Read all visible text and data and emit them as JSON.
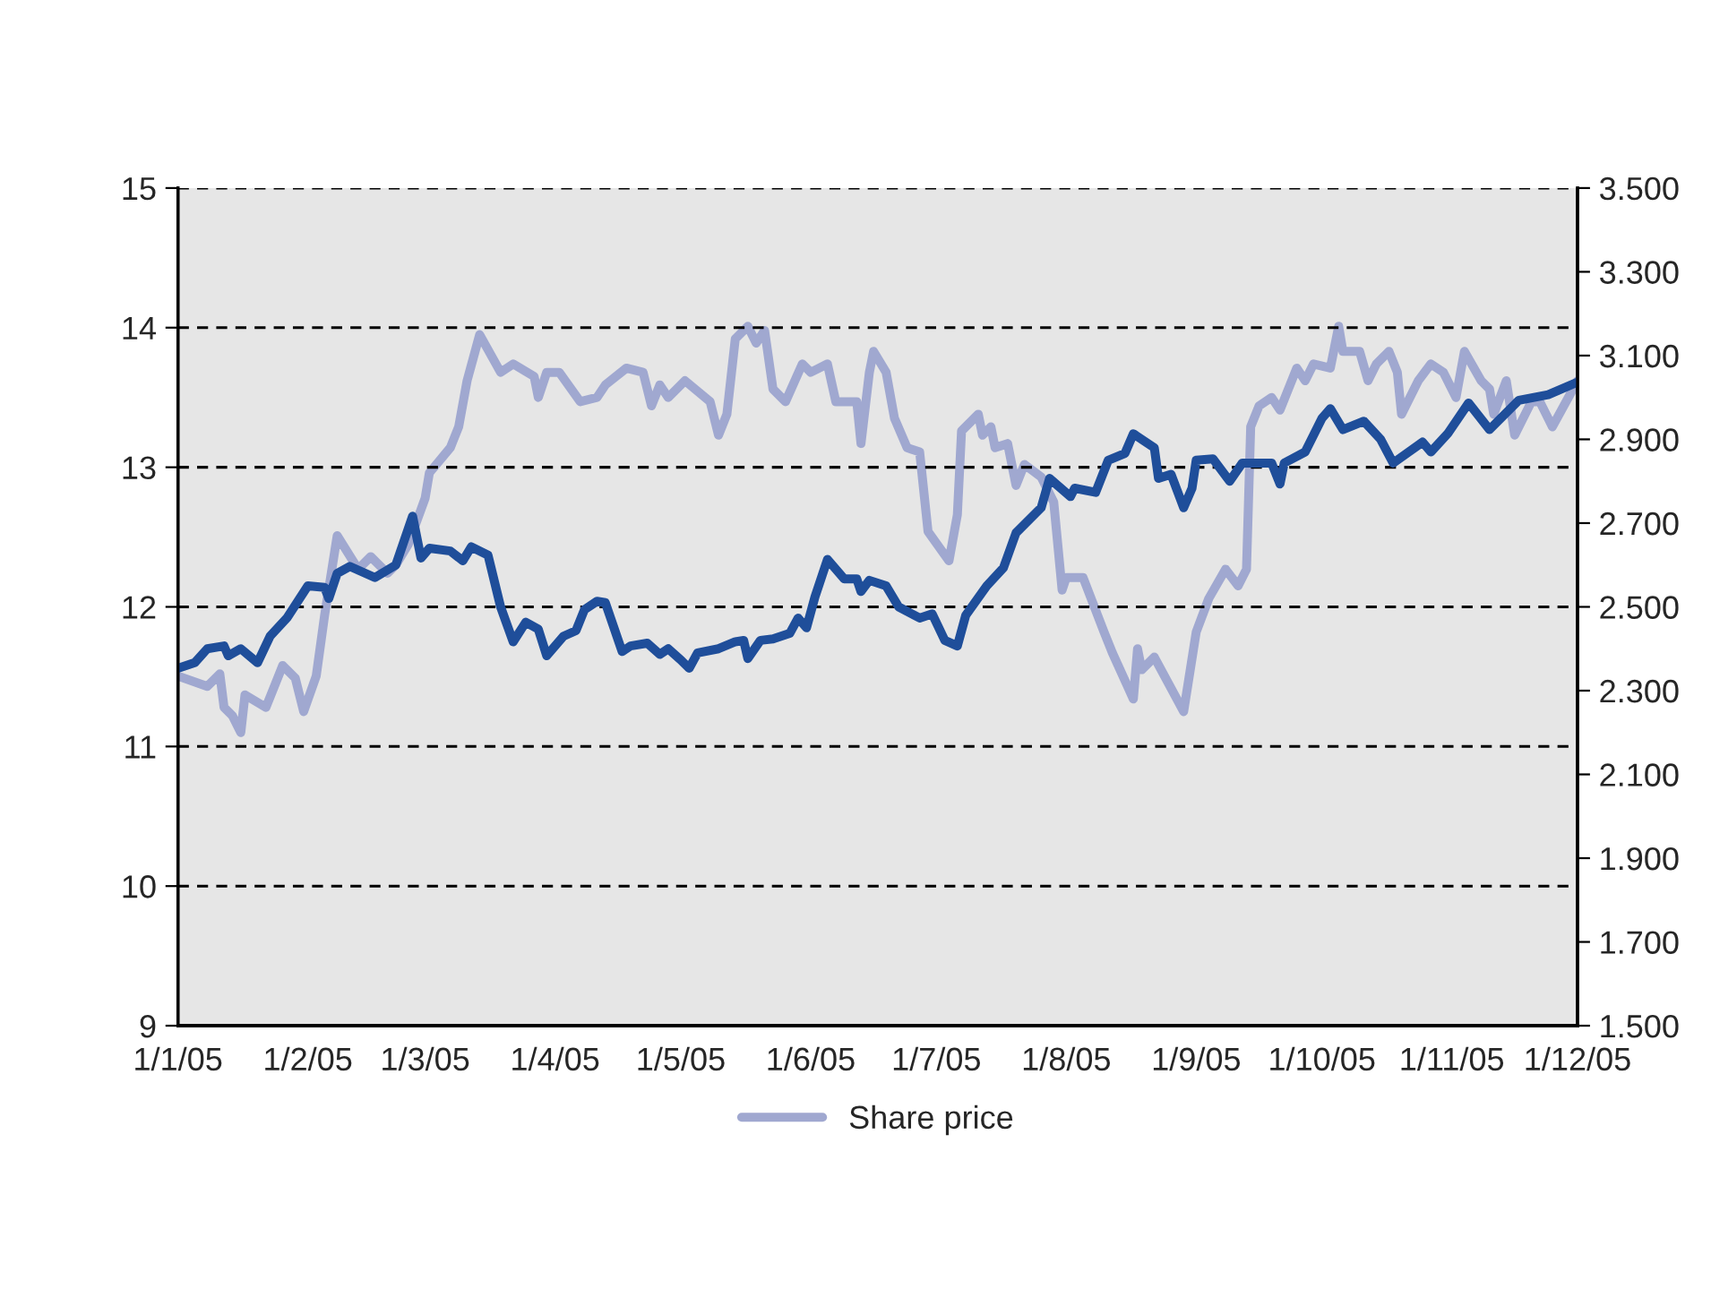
{
  "chart_data": {
    "type": "line",
    "xlim": [
      "2005-01-01",
      "2005-12-01"
    ],
    "xticks": [
      {
        "value": "2005-01-01",
        "label": "1/1/05"
      },
      {
        "value": "2005-02-01",
        "label": "1/2/05"
      },
      {
        "value": "2005-03-01",
        "label": "1/3/05"
      },
      {
        "value": "2005-04-01",
        "label": "1/4/05"
      },
      {
        "value": "2005-05-01",
        "label": "1/5/05"
      },
      {
        "value": "2005-06-01",
        "label": "1/6/05"
      },
      {
        "value": "2005-07-01",
        "label": "1/7/05"
      },
      {
        "value": "2005-08-01",
        "label": "1/8/05"
      },
      {
        "value": "2005-09-01",
        "label": "1/9/05"
      },
      {
        "value": "2005-10-01",
        "label": "1/10/05"
      },
      {
        "value": "2005-11-01",
        "label": "1/11/05"
      },
      {
        "value": "2005-12-01",
        "label": "1/12/05"
      }
    ],
    "ylim": [
      9,
      15
    ],
    "yticks": [
      9,
      10,
      11,
      12,
      13,
      14,
      15
    ],
    "y2lim": [
      1.5,
      3.5
    ],
    "y2ticks": [
      {
        "value": 1.5,
        "label": "1.500"
      },
      {
        "value": 1.7,
        "label": "1.700"
      },
      {
        "value": 1.9,
        "label": "1.900"
      },
      {
        "value": 2.1,
        "label": "2.100"
      },
      {
        "value": 2.3,
        "label": "2.300"
      },
      {
        "value": 2.5,
        "label": "2.500"
      },
      {
        "value": 2.7,
        "label": "2.700"
      },
      {
        "value": 2.9,
        "label": "2.900"
      },
      {
        "value": 3.1,
        "label": "3.100"
      },
      {
        "value": 3.3,
        "label": "3.300"
      },
      {
        "value": 3.5,
        "label": "3.500"
      }
    ],
    "grid": "y",
    "legend": "bottom",
    "series": [
      {
        "color": "#1f4e9a",
        "x": [
          "2005-01-01",
          "2005-01-05",
          "2005-01-08",
          "2005-01-12",
          "2005-01-13",
          "2005-01-16",
          "2005-01-20",
          "2005-01-23",
          "2005-01-27",
          "2005-02-01",
          "2005-02-05",
          "2005-02-06",
          "2005-02-08",
          "2005-02-11",
          "2005-02-17",
          "2005-02-22",
          "2005-02-26",
          "2005-02-28",
          "2005-03-02",
          "2005-03-07",
          "2005-03-10",
          "2005-03-12",
          "2005-03-16",
          "2005-03-19",
          "2005-03-22",
          "2005-03-25",
          "2005-03-28",
          "2005-03-30",
          "2005-04-03",
          "2005-04-06",
          "2005-04-08",
          "2005-04-11",
          "2005-04-13",
          "2005-04-17",
          "2005-04-19",
          "2005-04-23",
          "2005-04-26",
          "2005-04-28",
          "2005-05-01",
          "2005-05-03",
          "2005-05-05",
          "2005-05-10",
          "2005-05-14",
          "2005-05-16",
          "2005-05-17",
          "2005-05-20",
          "2005-05-23",
          "2005-05-27",
          "2005-05-29",
          "2005-05-31",
          "2005-06-02",
          "2005-06-05",
          "2005-06-09",
          "2005-06-12",
          "2005-06-13",
          "2005-06-15",
          "2005-06-19",
          "2005-06-22",
          "2005-06-27",
          "2005-06-30",
          "2005-07-03",
          "2005-07-06",
          "2005-07-08",
          "2005-07-13",
          "2005-07-17",
          "2005-07-20",
          "2005-07-26",
          "2005-07-28",
          "2005-08-02",
          "2005-08-03",
          "2005-08-08",
          "2005-08-11",
          "2005-08-15",
          "2005-08-17",
          "2005-08-22",
          "2005-08-23",
          "2005-08-26",
          "2005-08-29",
          "2005-08-31",
          "2005-09-01",
          "2005-09-05",
          "2005-09-09",
          "2005-09-12",
          "2005-09-19",
          "2005-09-21",
          "2005-09-22",
          "2005-09-27",
          "2005-10-01",
          "2005-10-03",
          "2005-10-06",
          "2005-10-11",
          "2005-10-15",
          "2005-10-18",
          "2005-10-25",
          "2005-10-27",
          "2005-10-31",
          "2005-11-05",
          "2005-11-10",
          "2005-11-17",
          "2005-11-24",
          "2005-12-01"
        ],
        "values": [
          11.56,
          11.6,
          11.7,
          11.72,
          11.65,
          11.7,
          11.6,
          11.79,
          11.92,
          12.15,
          12.14,
          12.06,
          12.24,
          12.29,
          12.21,
          12.3,
          12.65,
          12.35,
          12.42,
          12.4,
          12.33,
          12.43,
          12.37,
          12.0,
          11.75,
          11.89,
          11.84,
          11.65,
          11.79,
          11.83,
          11.98,
          12.04,
          12.03,
          11.68,
          11.72,
          11.74,
          11.66,
          11.7,
          11.62,
          11.56,
          11.67,
          11.7,
          11.75,
          11.76,
          11.63,
          11.76,
          11.77,
          11.81,
          11.92,
          11.85,
          12.07,
          12.34,
          12.2,
          12.2,
          12.11,
          12.19,
          12.15,
          12.0,
          11.92,
          11.95,
          11.76,
          11.72,
          11.94,
          12.15,
          12.28,
          12.53,
          12.71,
          12.92,
          12.79,
          12.85,
          12.82,
          13.05,
          13.1,
          13.24,
          13.14,
          12.92,
          12.95,
          12.71,
          12.85,
          13.05,
          13.06,
          12.9,
          13.03,
          13.03,
          12.88,
          13.03,
          13.11,
          13.35,
          13.42,
          13.27,
          13.33,
          13.2,
          13.03,
          13.18,
          13.11,
          13.24,
          13.46,
          13.27,
          13.48,
          13.52,
          13.61
        ]
      },
      {
        "name": "Share price",
        "color": "#a0a8d0",
        "axis": "y2",
        "x": [
          "2005-01-01",
          "2005-01-08",
          "2005-01-11",
          "2005-01-12",
          "2005-01-14",
          "2005-01-16",
          "2005-01-17",
          "2005-01-22",
          "2005-01-26",
          "2005-01-29",
          "2005-01-31",
          "2005-02-03",
          "2005-02-05",
          "2005-02-08",
          "2005-02-13",
          "2005-02-16",
          "2005-02-20",
          "2005-02-22",
          "2005-02-25",
          "2005-03-01",
          "2005-03-02",
          "2005-03-07",
          "2005-03-09",
          "2005-03-11",
          "2005-03-14",
          "2005-03-19",
          "2005-03-22",
          "2005-03-27",
          "2005-03-28",
          "2005-03-30",
          "2005-04-02",
          "2005-04-07",
          "2005-04-11",
          "2005-04-13",
          "2005-04-18",
          "2005-04-22",
          "2005-04-24",
          "2005-04-26",
          "2005-04-28",
          "2005-05-02",
          "2005-05-08",
          "2005-05-10",
          "2005-05-12",
          "2005-05-14",
          "2005-05-17",
          "2005-05-19",
          "2005-05-21",
          "2005-05-23",
          "2005-05-26",
          "2005-05-30",
          "2005-06-01",
          "2005-06-05",
          "2005-06-07",
          "2005-06-12",
          "2005-06-13",
          "2005-06-15",
          "2005-06-16",
          "2005-06-19",
          "2005-06-21",
          "2005-06-24",
          "2005-06-27",
          "2005-06-29",
          "2005-07-04",
          "2005-07-06",
          "2005-07-07",
          "2005-07-11",
          "2005-07-12",
          "2005-07-14",
          "2005-07-15",
          "2005-07-18",
          "2005-07-20",
          "2005-07-22",
          "2005-07-26",
          "2005-07-29",
          "2005-07-31",
          "2005-08-01",
          "2005-08-05",
          "2005-08-10",
          "2005-08-12",
          "2005-08-17",
          "2005-08-18",
          "2005-08-19",
          "2005-08-22",
          "2005-08-29",
          "2005-09-01",
          "2005-09-04",
          "2005-09-08",
          "2005-09-11",
          "2005-09-13",
          "2005-09-14",
          "2005-09-16",
          "2005-09-19",
          "2005-09-21",
          "2005-09-25",
          "2005-09-27",
          "2005-09-29",
          "2005-10-03",
          "2005-10-05",
          "2005-10-06",
          "2005-10-10",
          "2005-10-12",
          "2005-10-14",
          "2005-10-17",
          "2005-10-19",
          "2005-10-20",
          "2005-10-24",
          "2005-10-27",
          "2005-10-30",
          "2005-11-02",
          "2005-11-04",
          "2005-11-08",
          "2005-11-10",
          "2005-11-11",
          "2005-11-14",
          "2005-11-16",
          "2005-11-20",
          "2005-11-22",
          "2005-11-25",
          "2005-12-01"
        ],
        "values": [
          2.335,
          2.31,
          2.34,
          2.26,
          2.24,
          2.2,
          2.29,
          2.26,
          2.36,
          2.33,
          2.25,
          2.335,
          2.48,
          2.67,
          2.59,
          2.62,
          2.58,
          2.6,
          2.65,
          2.76,
          2.82,
          2.88,
          2.93,
          3.04,
          3.15,
          3.06,
          3.08,
          3.05,
          3.0,
          3.06,
          3.06,
          2.99,
          3.0,
          3.03,
          3.07,
          3.06,
          2.98,
          3.03,
          3.0,
          3.04,
          2.99,
          2.91,
          2.96,
          3.14,
          3.17,
          3.13,
          3.16,
          3.02,
          2.99,
          3.08,
          3.06,
          3.08,
          2.99,
          2.99,
          2.89,
          3.06,
          3.11,
          3.06,
          2.95,
          2.88,
          2.87,
          2.68,
          2.61,
          2.72,
          2.92,
          2.96,
          2.91,
          2.93,
          2.88,
          2.89,
          2.79,
          2.84,
          2.81,
          2.75,
          2.54,
          2.57,
          2.57,
          2.44,
          2.39,
          2.28,
          2.4,
          2.35,
          2.38,
          2.25,
          2.44,
          2.52,
          2.59,
          2.55,
          2.59,
          2.93,
          2.98,
          3.0,
          2.97,
          3.07,
          3.04,
          3.08,
          3.07,
          3.17,
          3.11,
          3.11,
          3.04,
          3.08,
          3.11,
          3.06,
          2.96,
          3.04,
          3.08,
          3.06,
          3.0,
          3.11,
          3.04,
          3.02,
          2.96,
          3.04,
          2.91,
          2.99,
          2.99,
          2.93,
          3.04
        ]
      }
    ]
  }
}
